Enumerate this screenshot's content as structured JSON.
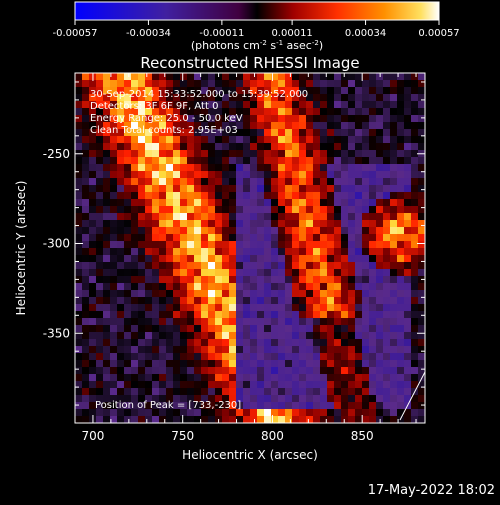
{
  "colorbar": {
    "tick_labels": [
      "-0.00057",
      "-0.00034",
      "-0.00011",
      "0.00011",
      "0.00034",
      "0.00057"
    ],
    "min": -0.00057,
    "max": 0.00057,
    "units": "(photons cm",
    "units_sup1": "-2",
    "units_mid": " s",
    "units_sup2": "-1",
    "units_mid2": " asec",
    "units_sup3": "-2",
    "units_end": ")"
  },
  "chart_data": {
    "type": "heatmap",
    "title": "Reconstructed RHESSI Image",
    "xlabel": "Heliocentric X (arcsec)",
    "ylabel": "Heliocentric Y (arcsec)",
    "xlim": [
      690,
      885
    ],
    "ylim": [
      -400,
      -205
    ],
    "x_ticks": [
      700,
      750,
      800,
      850
    ],
    "y_ticks": [
      -350,
      -300,
      -250
    ],
    "annotations": [
      "30-Sep-2014 15:33:52.000 to 15:39:52.000",
      "Detectors: 3F 6F 9F, Att 0",
      "Energy Range: 25.0 - 50.0 keV",
      "Clean    Total counts: 2.95E+03"
    ],
    "peak_label": "Position of Peak = [733,-230]",
    "peak_position": [
      733,
      -230
    ],
    "colormap": [
      "#0000ff",
      "#3a1a9a",
      "#5a2a8a",
      "#000000",
      "#8b0000",
      "#ff2000",
      "#ff8000",
      "#ffe040",
      "#ffffff"
    ]
  },
  "footer": {
    "timestamp": "17-May-2022 18:02"
  }
}
